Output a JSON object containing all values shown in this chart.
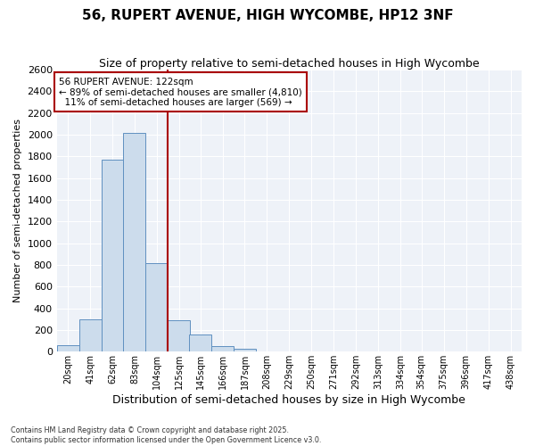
{
  "title": "56, RUPERT AVENUE, HIGH WYCOMBE, HP12 3NF",
  "subtitle": "Size of property relative to semi-detached houses in High Wycombe",
  "xlabel": "Distribution of semi-detached houses by size in High Wycombe",
  "ylabel": "Number of semi-detached properties",
  "footnote": "Contains HM Land Registry data © Crown copyright and database right 2025.\nContains public sector information licensed under the Open Government Licence v3.0.",
  "property_label": "56 RUPERT AVENUE: 122sqm",
  "pct_smaller": 89,
  "count_smaller": 4810,
  "pct_larger": 11,
  "count_larger": 569,
  "bin_labels": [
    "20sqm",
    "41sqm",
    "62sqm",
    "83sqm",
    "104sqm",
    "125sqm",
    "145sqm",
    "166sqm",
    "187sqm",
    "208sqm",
    "229sqm",
    "250sqm",
    "271sqm",
    "292sqm",
    "313sqm",
    "334sqm",
    "354sqm",
    "375sqm",
    "396sqm",
    "417sqm",
    "438sqm"
  ],
  "bin_left": [
    20,
    41,
    62,
    83,
    104,
    125,
    145,
    166,
    187,
    208,
    229,
    250,
    271,
    292,
    313,
    334,
    354,
    375,
    396,
    417,
    438
  ],
  "bin_width": 21,
  "bar_values": [
    60,
    300,
    1770,
    2020,
    820,
    290,
    160,
    50,
    30,
    0,
    0,
    0,
    0,
    0,
    0,
    0,
    0,
    0,
    0,
    0,
    0
  ],
  "bar_color": "#ccdcec",
  "bar_edge_color": "#6090c0",
  "vline_x": 125,
  "vline_color": "#aa0000",
  "annotation_box_color": "#aa0000",
  "plot_bg_color": "#eef2f8",
  "ylim": [
    0,
    2600
  ],
  "yticks": [
    0,
    200,
    400,
    600,
    800,
    1000,
    1200,
    1400,
    1600,
    1800,
    2000,
    2200,
    2400,
    2600
  ],
  "title_fontsize": 11,
  "subtitle_fontsize": 9,
  "ylabel_fontsize": 8,
  "xlabel_fontsize": 9,
  "ytick_fontsize": 8,
  "xtick_fontsize": 7
}
